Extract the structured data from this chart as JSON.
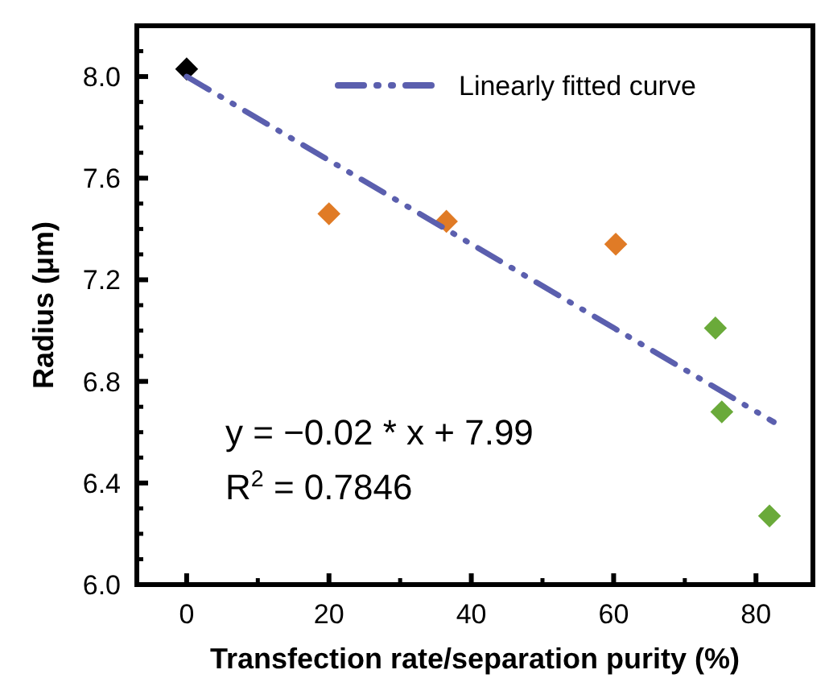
{
  "chart_data": {
    "type": "scatter",
    "xlabel": "Transfection rate/separation purity (%)",
    "ylabel": "Radius (μm)",
    "xlim": [
      -7,
      88
    ],
    "xticks": [
      0,
      20,
      40,
      60,
      80
    ],
    "ylim": [
      6.0,
      8.2
    ],
    "yticks": [
      {
        "value": 6.0,
        "label": "6.0"
      },
      {
        "value": 6.4,
        "label": "6.4"
      },
      {
        "value": 6.8,
        "label": "6.8"
      },
      {
        "value": 7.2,
        "label": "7.2"
      },
      {
        "value": 7.6,
        "label": "7.6"
      },
      {
        "value": 8.0,
        "label": "8.0"
      }
    ],
    "grid": false,
    "legend": "top right",
    "marker": "diamond",
    "series": [
      {
        "x": [
          0,
          20,
          36.5,
          60.3,
          74.3,
          75.2,
          81.9
        ],
        "values": [
          8.03,
          7.46,
          7.43,
          7.34,
          7.01,
          6.68,
          6.27
        ],
        "colors": [
          "#000000",
          "#e07b26",
          "#e07b26",
          "#e07b26",
          "#6aaa3a",
          "#6aaa3a",
          "#6aaa3a"
        ]
      },
      {
        "type": "line",
        "name": "Linearly fitted curve",
        "color": "#5b5fae",
        "line_style": "dashed",
        "marker": "none",
        "x": [
          0,
          82.5
        ],
        "values": [
          8.0,
          6.64
        ]
      }
    ],
    "annotations": [
      "y = −0.02 * x + 7.99",
      "R$^{2}$ = 0.7846"
    ]
  }
}
